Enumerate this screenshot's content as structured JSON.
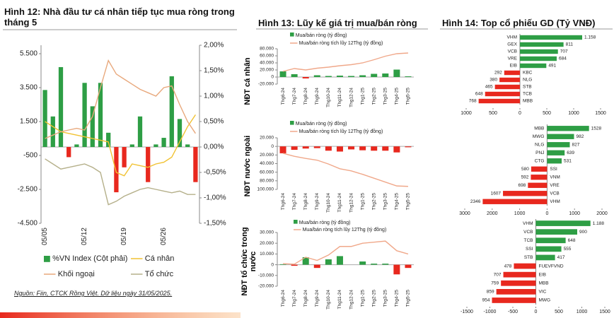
{
  "chart_data": [
    {
      "type": "combo",
      "title": "Hình 12: Nhà đầu tư cá nhân tiếp tục mua ròng trong tháng 5",
      "source": "Nguồn: Fiin, CTCK Rồng Việt. Dữ liệu ngày 31/05/2025.",
      "categories": [
        "05/05",
        null,
        null,
        null,
        null,
        "05/12",
        null,
        null,
        null,
        null,
        "05/19",
        null,
        null,
        null,
        null,
        "05/26",
        null,
        null,
        null,
        null
      ],
      "ylim": [
        -4500,
        6000
      ],
      "yticks": [
        {
          "value": 5500,
          "label": "5.500"
        },
        {
          "value": 3500,
          "label": "3.500"
        },
        {
          "value": 1500,
          "label": "1.500"
        },
        -500,
        {
          "value": -2500,
          "label": "-2.500"
        },
        {
          "value": -4500,
          "label": "-4.500"
        }
      ],
      "y2lim": [
        -1.5,
        2
      ],
      "y2ticks": [
        {
          "value": 2,
          "label": "2,00%"
        },
        {
          "value": 1.5,
          "label": "1,50%"
        },
        {
          "value": 1,
          "label": "1,00%"
        },
        {
          "value": 0.5,
          "label": "0,50%"
        },
        {
          "value": 0,
          "label": "0,00%"
        },
        {
          "value": -0.5,
          "label": "-0,50%"
        },
        {
          "value": -1,
          "label": "-1,00%"
        },
        {
          "value": -1.5,
          "label": "-1,50%"
        }
      ],
      "series": [
        {
          "name": "%VN Index (Cột phải)",
          "kind": "bar",
          "axis": "y2",
          "color": "#2e9e45",
          "negative_color": "#e8281e",
          "values": [
            1.12,
            0.6,
            1.57,
            -0.2,
            0.05,
            1.26,
            0.8,
            1.26,
            0.28,
            -0.89,
            -0.4,
            0.05,
            0.6,
            -0.69,
            0.05,
            0.18,
            1.39,
            0.55,
            0.05,
            -0.69
          ]
        },
        {
          "name": "Cá nhân",
          "kind": "line",
          "color": "#f1c232",
          "values": [
            1500,
            1200,
            900,
            800,
            700,
            600,
            500,
            400,
            300,
            -1500,
            -1700,
            -1000,
            -1100,
            -1200,
            -1000,
            -900,
            -600,
            300,
            1200,
            1900
          ]
        },
        {
          "name": "Khối ngoại",
          "kind": "line",
          "color": "#e8a87c",
          "values": [
            500,
            700,
            900,
            1000,
            1100,
            1000,
            1800,
            3500,
            5100,
            4300,
            4000,
            3700,
            3400,
            3200,
            3000,
            3500,
            3600,
            2500,
            1500,
            800
          ]
        },
        {
          "name": "Tổ chức",
          "kind": "line",
          "color": "#b5b08a",
          "values": [
            -700,
            -1000,
            -1300,
            -1200,
            -1100,
            -1000,
            -1200,
            -1500,
            -3400,
            -3200,
            -2900,
            -2700,
            -2500,
            -2400,
            -2500,
            -2600,
            -2700,
            -2600,
            -2800,
            -2800
          ]
        }
      ]
    },
    {
      "type": "combo",
      "title": "Hình 13: Lũy kế giá trị mua/bán ròng",
      "ylabel": "NĐT cá nhân",
      "categories": [
        "Thg6-24",
        "Thg7-24",
        "Thg8-24",
        "Thg9-24",
        "Thg10-24",
        "Thg11-24",
        "Thg12-24",
        "Thg1-25",
        "Thg2-25",
        "Thg3-25",
        "Thg4-25",
        "Thg5-25"
      ],
      "ylim": [
        -20000,
        80000
      ],
      "yticks": [
        {
          "value": 80000,
          "label": "80.000"
        },
        {
          "value": 60000,
          "label": "60.000"
        },
        {
          "value": 40000,
          "label": "40.000"
        },
        {
          "value": 20000,
          "label": "20.000"
        },
        0,
        {
          "value": -20000,
          "label": "-20.000"
        }
      ],
      "series": [
        {
          "name": "Mua/bán ròng (tỷ đồng)",
          "kind": "bar",
          "color": "#2e9e45",
          "negative_color": "#e8281e",
          "values": [
            16000,
            8000,
            -4000,
            5000,
            3000,
            4000,
            3000,
            5000,
            9000,
            10000,
            21000,
            2000
          ]
        },
        {
          "name": "Mua/bán ròng tích lũy 12Thg (tỷ đồng)",
          "kind": "line",
          "color": "#f0a88a",
          "values": [
            16000,
            24000,
            20000,
            25000,
            28000,
            32000,
            35000,
            40000,
            49000,
            59000,
            66000,
            68000
          ]
        }
      ]
    },
    {
      "type": "combo",
      "ylabel": "NĐT nước ngoài",
      "categories": [
        "Thg6-24",
        "Thg7-24",
        "Thg8-24",
        "Thg9-24",
        "Thg10-24",
        "Thg11-24",
        "Thg12-24",
        "Thg1-25",
        "Thg2-25",
        "Thg3-25",
        "Thg4-25",
        "Thg5-25"
      ],
      "ylim": [
        -100000,
        20000
      ],
      "yticks": [
        {
          "value": 20000,
          "label": "20.000"
        },
        0,
        {
          "value": -20000,
          "label": "20.000"
        },
        {
          "value": -40000,
          "label": "40.000"
        },
        {
          "value": -60000,
          "label": "60.000"
        },
        {
          "value": -80000,
          "label": "80.000"
        },
        {
          "value": -100000,
          "label": "100.000"
        }
      ],
      "series": [
        {
          "name": "Mua/bán ròng (tỷ đồng)",
          "kind": "bar",
          "color": "#2e9e45",
          "negative_color": "#e8281e",
          "values": [
            -16000,
            -8000,
            -5000,
            -4000,
            -10000,
            -12000,
            -7000,
            -9000,
            -10000,
            -10000,
            -14000,
            -2000
          ]
        },
        {
          "name": "Mua/bán ròng tích lũy 12Thg (tỷ đồng)",
          "kind": "line",
          "color": "#f0a88a",
          "values": [
            -16000,
            -23000,
            -28000,
            -32000,
            -41000,
            -52000,
            -57000,
            -65000,
            -74000,
            -83000,
            -92000,
            -93000
          ]
        }
      ]
    },
    {
      "type": "combo",
      "ylabel": "NĐT tổ chức trong nước",
      "categories": [
        "Thg6-24",
        "Thg7-24",
        "Thg8-24",
        "Thg9-24",
        "Thg10-24",
        "Thg11-24",
        "Thg12-24",
        "Thg1-25",
        "Thg2-25",
        "Thg3-25",
        "Thg4-25",
        "Thg5-25"
      ],
      "ylim": [
        -20000,
        30000
      ],
      "yticks": [
        {
          "value": 30000,
          "label": "30.000"
        },
        {
          "value": 20000,
          "label": "20.000"
        },
        {
          "value": 10000,
          "label": "10.000"
        },
        0,
        {
          "value": -10000,
          "label": "-10.000"
        },
        {
          "value": -20000,
          "label": "-20.000"
        }
      ],
      "series": [
        {
          "name": "Mua/bán ròng (tỷ đồng)",
          "kind": "bar",
          "color": "#2e9e45",
          "negative_color": "#e8281e",
          "values": [
            500,
            -1000,
            7000,
            -3000,
            5000,
            8000,
            0,
            3000,
            1000,
            1000,
            -9000,
            -3000
          ]
        },
        {
          "name": "Mua/bán ròng tích lũy 12Thg (tỷ đồng)",
          "kind": "line",
          "color": "#f0a88a",
          "values": [
            1000,
            500,
            7000,
            4000,
            9000,
            17000,
            17000,
            20000,
            21000,
            22000,
            13000,
            10000
          ]
        }
      ]
    },
    {
      "type": "barh",
      "title": "Hình 14: Top cổ phiếu GD (Tỷ VNĐ)",
      "color": "#2e9e45",
      "negative_color": "#e8281e",
      "categories": [
        "VHM",
        "GEX",
        "VCB",
        "VRE",
        "EIB",
        "KBC",
        "NLG",
        "STB",
        "TCB",
        "MBB"
      ],
      "values": [
        1158,
        811,
        707,
        684,
        491,
        -292,
        -380,
        -465,
        -648,
        -768
      ],
      "value_labels": [
        "1.158",
        "811",
        "707",
        "684",
        "491",
        "292",
        "380",
        "465",
        "648",
        "768"
      ],
      "xlim": [
        -1000,
        1500
      ],
      "xticks": [
        {
          "value": -1000,
          "label": "1000"
        },
        {
          "value": -500,
          "label": "500"
        },
        0,
        500,
        1000,
        1500
      ]
    },
    {
      "type": "barh",
      "color": "#2e9e45",
      "negative_color": "#e8281e",
      "categories": [
        "MBB",
        "MWG",
        "NLG",
        "PNJ",
        "CTG",
        "SSI",
        "VNM",
        "VRE",
        "VCB",
        "VHM"
      ],
      "values": [
        1528,
        982,
        827,
        639,
        531,
        -580,
        -592,
        -698,
        -1607,
        -2346
      ],
      "value_labels": [
        "1528",
        "982",
        "827",
        "639",
        "531",
        "580",
        "592",
        "698",
        "1607",
        "2346"
      ],
      "xlim": [
        -3000,
        2000
      ],
      "xticks": [
        {
          "value": -3000,
          "label": "3000"
        },
        {
          "value": -2000,
          "label": "2000"
        },
        {
          "value": -1000,
          "label": "1000"
        },
        0,
        1000,
        2000
      ]
    },
    {
      "type": "barh",
      "color": "#2e9e45",
      "negative_color": "#e8281e",
      "categories": [
        "VHM",
        "VCB",
        "TCB",
        "SSI",
        "STB",
        "FUEVFVND",
        "EIB",
        "MBB",
        "VIC",
        "MWG"
      ],
      "values": [
        1188,
        900,
        648,
        555,
        417,
        -478,
        -707,
        -759,
        -859,
        -954
      ],
      "value_labels": [
        "1.188",
        "900",
        "648",
        "555",
        "417",
        "478",
        "707",
        "759",
        "859",
        "954"
      ],
      "xlim": [
        -1500,
        1500
      ],
      "xticks": [
        -1500,
        -1000,
        -500,
        0,
        500,
        1000,
        1500
      ]
    }
  ]
}
